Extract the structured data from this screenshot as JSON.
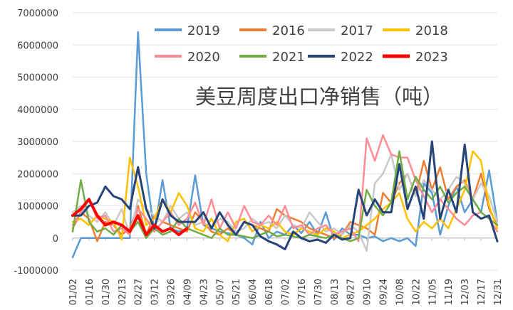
{
  "chart_data": {
    "type": "line",
    "title": "美豆周度出口净销售（吨）",
    "xlabel": "",
    "ylabel": "",
    "ylim": [
      -1000000,
      7000000
    ],
    "y_ticks": [
      "-1000000",
      "0",
      "1000000",
      "2000000",
      "3000000",
      "4000000",
      "5000000",
      "6000000",
      "7000000"
    ],
    "x_tick_labels": [
      "01/02",
      "01/16",
      "01/30",
      "02/13",
      "02/27",
      "03/12",
      "03/26",
      "04/09",
      "04/23",
      "05/07",
      "05/21",
      "06/04",
      "06/18",
      "07/02",
      "07/16",
      "07/30",
      "08/13",
      "08/27",
      "09/10",
      "09/24",
      "10/08",
      "10/22",
      "11/05",
      "11/19",
      "12/03",
      "12/17",
      "12/31"
    ],
    "grid": "horizontal",
    "legend": "top-right",
    "n_weeks": 53,
    "series": [
      {
        "name": "2019",
        "color": "#5B9BD5",
        "width": 2.5,
        "values": [
          -600000,
          0,
          0,
          0,
          0,
          0,
          0,
          0,
          6400000,
          2000000,
          200000,
          1800000,
          300000,
          200000,
          300000,
          1950000,
          400000,
          300000,
          200000,
          150000,
          100000,
          0,
          -200000,
          500000,
          0,
          200000,
          100000,
          400000,
          150000,
          500000,
          100000,
          800000,
          -50000,
          300000,
          100000,
          100000,
          0,
          50000,
          -100000,
          0,
          -100000,
          0,
          -250000,
          1700000,
          1400000,
          100000,
          1000000,
          1600000,
          800000,
          1200000,
          800000,
          2100000,
          500000
        ]
      },
      {
        "name": "2016",
        "color": "#ED7D31",
        "width": 2.5,
        "values": [
          300000,
          800000,
          600000,
          -100000,
          500000,
          400000,
          100000,
          300000,
          1000000,
          100000,
          700000,
          500000,
          400000,
          300000,
          200000,
          800000,
          500000,
          200000,
          100000,
          300000,
          100000,
          500000,
          400000,
          300000,
          200000,
          900000,
          700000,
          600000,
          500000,
          300000,
          200000,
          100000,
          0,
          100000,
          500000,
          400000,
          300000,
          100000,
          1400000,
          1100000,
          1700000,
          2000000,
          1300000,
          2400000,
          1500000,
          2200000,
          1200000,
          1600000,
          1800000,
          1200000,
          2000000,
          900000,
          400000
        ]
      },
      {
        "name": "2017",
        "color": "#C9C9C9",
        "width": 2.5,
        "values": [
          800000,
          1000000,
          700000,
          500000,
          800000,
          400000,
          900000,
          100000,
          1200000,
          900000,
          700000,
          500000,
          1000000,
          600000,
          800000,
          400000,
          500000,
          300000,
          600000,
          500000,
          200000,
          300000,
          600000,
          400000,
          500000,
          300000,
          700000,
          400000,
          300000,
          800000,
          500000,
          200000,
          300000,
          100000,
          400000,
          200000,
          -400000,
          1700000,
          2000000,
          2600000,
          1500000,
          2000000,
          1300000,
          1800000,
          1500000,
          1200000,
          1500000,
          1900000,
          1700000,
          1200000,
          1700000,
          1300000,
          500000
        ]
      },
      {
        "name": "2018",
        "color": "#FFC000",
        "width": 2.5,
        "values": [
          500000,
          600000,
          400000,
          700000,
          600000,
          500000,
          -50000,
          2500000,
          1600000,
          400000,
          600000,
          1200000,
          800000,
          1400000,
          1000000,
          300000,
          200000,
          600000,
          100000,
          -100000,
          500000,
          600000,
          200000,
          400000,
          300000,
          500000,
          200000,
          100000,
          300000,
          200000,
          100000,
          300000,
          200000,
          0,
          100000,
          200000,
          400000,
          600000,
          900000,
          1100000,
          1400000,
          600000,
          200000,
          500000,
          300000,
          600000,
          300000,
          900000,
          1500000,
          2700000,
          2400000,
          1000000,
          300000
        ]
      },
      {
        "name": "2020",
        "color": "#FF8C94",
        "width": 2.5,
        "values": [
          400000,
          800000,
          1200000,
          600000,
          700000,
          200000,
          300000,
          100000,
          900000,
          600000,
          200000,
          500000,
          800000,
          400000,
          600000,
          1100000,
          400000,
          1200000,
          300000,
          800000,
          300000,
          1000000,
          500000,
          400000,
          700000,
          400000,
          1000000,
          300000,
          400000,
          100000,
          300000,
          400000,
          100000,
          200000,
          300000,
          -100000,
          3100000,
          2400000,
          3200000,
          2600000,
          2500000,
          2500000,
          1800000,
          1300000,
          800000,
          1200000,
          900000,
          600000,
          400000,
          700000,
          800000,
          600000,
          200000
        ]
      },
      {
        "name": "2021",
        "color": "#70AD47",
        "width": 2.5,
        "values": [
          200000,
          1800000,
          500000,
          200000,
          300000,
          100000,
          400000,
          200000,
          500000,
          0,
          300000,
          100000,
          200000,
          600000,
          300000,
          200000,
          100000,
          0,
          300000,
          100000,
          100000,
          50000,
          0,
          100000,
          200000,
          50000,
          100000,
          50000,
          0,
          100000,
          50000,
          0,
          100000,
          0,
          -100000,
          0,
          1500000,
          1000000,
          700000,
          1100000,
          2700000,
          1200000,
          1900000,
          1500000,
          1200000,
          1600000,
          1100000,
          1400000,
          1600000,
          1200000,
          800000,
          600000,
          400000
        ]
      },
      {
        "name": "2022",
        "color": "#264478",
        "width": 3,
        "values": [
          700000,
          700000,
          1000000,
          1100000,
          1600000,
          1300000,
          1200000,
          900000,
          2200000,
          900000,
          300000,
          1200000,
          700000,
          500000,
          500000,
          500000,
          800000,
          300000,
          800000,
          400000,
          100000,
          500000,
          400000,
          50000,
          -100000,
          -200000,
          -350000,
          200000,
          0,
          -100000,
          -50000,
          -150000,
          100000,
          -50000,
          0,
          1500000,
          700000,
          1200000,
          800000,
          800000,
          2300000,
          900000,
          1600000,
          600000,
          3000000,
          600000,
          1500000,
          800000,
          2900000,
          800000,
          600000,
          700000,
          -100000
        ]
      },
      {
        "name": "2023",
        "color": "#FF0000",
        "width": 4,
        "values": [
          700000,
          900000,
          1200000,
          700000,
          400000,
          500000,
          400000,
          200000,
          700000,
          100000,
          400000,
          200000,
          300000,
          100000,
          300000
        ]
      }
    ]
  }
}
